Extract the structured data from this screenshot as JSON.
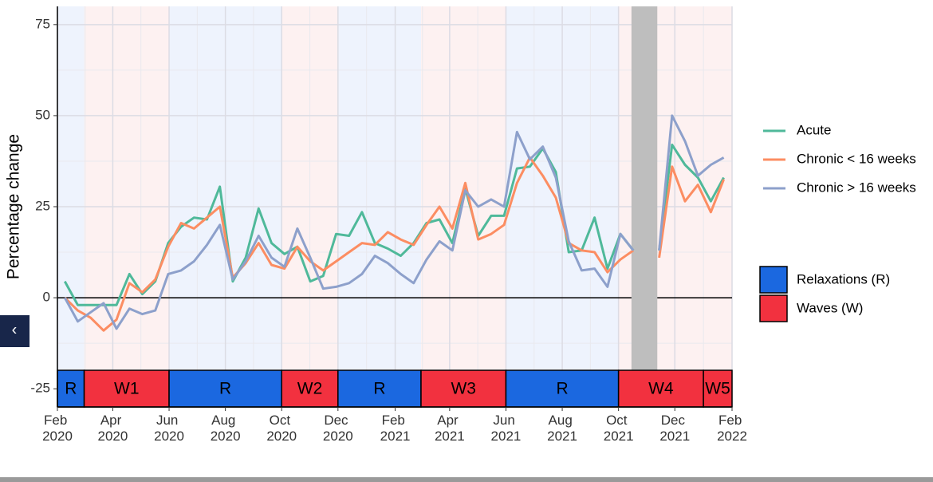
{
  "chart_data": {
    "type": "line",
    "ylabel": "Percentage change",
    "x": [
      "2020-02-09",
      "2020-02-23",
      "2020-03-08",
      "2020-03-22",
      "2020-04-05",
      "2020-04-19",
      "2020-05-03",
      "2020-05-17",
      "2020-05-31",
      "2020-06-14",
      "2020-06-28",
      "2020-07-12",
      "2020-07-26",
      "2020-08-09",
      "2020-08-23",
      "2020-09-06",
      "2020-09-20",
      "2020-10-04",
      "2020-10-18",
      "2020-11-01",
      "2020-11-15",
      "2020-11-29",
      "2020-12-13",
      "2020-12-27",
      "2021-01-10",
      "2021-01-24",
      "2021-02-07",
      "2021-02-21",
      "2021-03-07",
      "2021-03-21",
      "2021-04-04",
      "2021-04-18",
      "2021-05-02",
      "2021-05-16",
      "2021-05-30",
      "2021-06-13",
      "2021-06-27",
      "2021-07-11",
      "2021-07-25",
      "2021-08-08",
      "2021-08-22",
      "2021-09-05",
      "2021-09-19",
      "2021-10-03",
      "2021-10-17",
      "2021-10-31",
      "2021-11-14",
      "2021-11-28",
      "2021-12-12",
      "2021-12-26",
      "2022-01-09",
      "2022-01-23"
    ],
    "series": [
      {
        "name": "Acute",
        "color": "#4fb99a",
        "values": [
          4.5,
          -2,
          -2,
          -2,
          -2,
          6.5,
          1,
          4.5,
          15,
          19.5,
          22,
          21.5,
          30.5,
          4.5,
          11,
          24.5,
          15,
          12,
          14,
          4.5,
          6,
          17.5,
          17,
          23.5,
          15,
          13.5,
          11.5,
          15,
          20.5,
          21.5,
          15,
          30,
          17,
          22.5,
          22.5,
          35.5,
          36,
          41,
          34.5,
          12.5,
          13,
          22,
          8,
          17.5,
          13,
          null,
          13,
          42,
          36.5,
          33,
          26.5,
          33
        ]
      },
      {
        "name": "Chronic < 16 weeks",
        "color": "#fc8d62",
        "values": [
          0,
          -3.5,
          -5.5,
          -9,
          -6,
          4,
          1.5,
          5,
          14,
          20.5,
          19,
          22,
          25,
          5.5,
          9.5,
          15,
          9,
          8,
          14,
          10,
          7.5,
          10,
          12.5,
          15,
          14.5,
          18,
          16,
          14.5,
          20,
          25,
          19,
          31.5,
          16,
          17.5,
          20,
          31.5,
          38.5,
          33.5,
          27.5,
          15,
          13,
          12.5,
          7,
          10.5,
          13,
          null,
          11,
          36,
          26.5,
          31,
          23.5,
          32.5
        ]
      },
      {
        "name": "Chronic > 16 weeks",
        "color": "#8da0cb",
        "values": [
          0,
          -6.5,
          -4,
          -1.5,
          -8.5,
          -3,
          -4.5,
          -3.5,
          6.5,
          7.5,
          10,
          14.5,
          20,
          5,
          10,
          17,
          11,
          8.5,
          19,
          11,
          2.5,
          3,
          4,
          6.5,
          11.5,
          9.5,
          6.5,
          4,
          10.5,
          15.5,
          13,
          29.5,
          25,
          27,
          25,
          45.5,
          38,
          41.5,
          33,
          15.5,
          7.5,
          8,
          3,
          17.5,
          13,
          null,
          13,
          50,
          43,
          33.5,
          36.5,
          38.5
        ]
      }
    ],
    "xlim": [
      "2020-02-01",
      "2022-02-01"
    ],
    "xticks": [
      {
        "value": "2020-02-01",
        "label": "Feb 2020"
      },
      {
        "value": "2020-04-01",
        "label": "Apr 2020"
      },
      {
        "value": "2020-06-01",
        "label": "Jun 2020"
      },
      {
        "value": "2020-08-01",
        "label": "Aug 2020"
      },
      {
        "value": "2020-10-01",
        "label": "Oct 2020"
      },
      {
        "value": "2020-12-01",
        "label": "Dec 2020"
      },
      {
        "value": "2021-02-01",
        "label": "Feb 2021"
      },
      {
        "value": "2021-04-01",
        "label": "Apr 2021"
      },
      {
        "value": "2021-06-01",
        "label": "Jun 2021"
      },
      {
        "value": "2021-08-01",
        "label": "Aug 2021"
      },
      {
        "value": "2021-10-01",
        "label": "Oct 2021"
      },
      {
        "value": "2021-12-01",
        "label": "Dec 2021"
      },
      {
        "value": "2022-02-01",
        "label": "Feb 2022"
      }
    ],
    "ylim": [
      -30,
      80
    ],
    "yticks": [
      -25,
      0,
      25,
      50,
      75
    ],
    "grid": true,
    "periods": [
      {
        "label": "R",
        "start": "2020-02-01",
        "end": "2020-03-01",
        "color": "#1b68e0",
        "background": "#eef3fd"
      },
      {
        "label": "W1",
        "start": "2020-03-01",
        "end": "2020-06-01",
        "color": "#f2313f",
        "background": "#fdf1f1"
      },
      {
        "label": "R",
        "start": "2020-06-01",
        "end": "2020-10-01",
        "color": "#1b68e0",
        "background": "#eef3fd"
      },
      {
        "label": "W2",
        "start": "2020-10-01",
        "end": "2020-12-01",
        "color": "#f2313f",
        "background": "#fdf1f1"
      },
      {
        "label": "R",
        "start": "2020-12-01",
        "end": "2021-03-01",
        "color": "#1b68e0",
        "background": "#eef3fd"
      },
      {
        "label": "W3",
        "start": "2021-03-01",
        "end": "2021-06-01",
        "color": "#f2313f",
        "background": "#fdf1f1"
      },
      {
        "label": "R",
        "start": "2021-06-01",
        "end": "2021-10-01",
        "color": "#1b68e0",
        "background": "#eef3fd"
      },
      {
        "label": "W4",
        "start": "2021-10-01",
        "end": "2022-01-01",
        "color": "#f2313f",
        "background": "#fdf1f1"
      },
      {
        "label": "W5",
        "start": "2022-01-01",
        "end": "2022-02-01",
        "color": "#f2313f",
        "background": "#fdf1f1"
      }
    ],
    "shaded_range": {
      "start": "2021-10-15",
      "end": "2021-11-12",
      "color": "#bebebe"
    },
    "period_legend": [
      {
        "name": "Relaxations (R)",
        "color": "#1b68e0"
      },
      {
        "name": "Waves (W)",
        "color": "#f2313f"
      }
    ]
  },
  "ui": {
    "back_button": "‹"
  }
}
